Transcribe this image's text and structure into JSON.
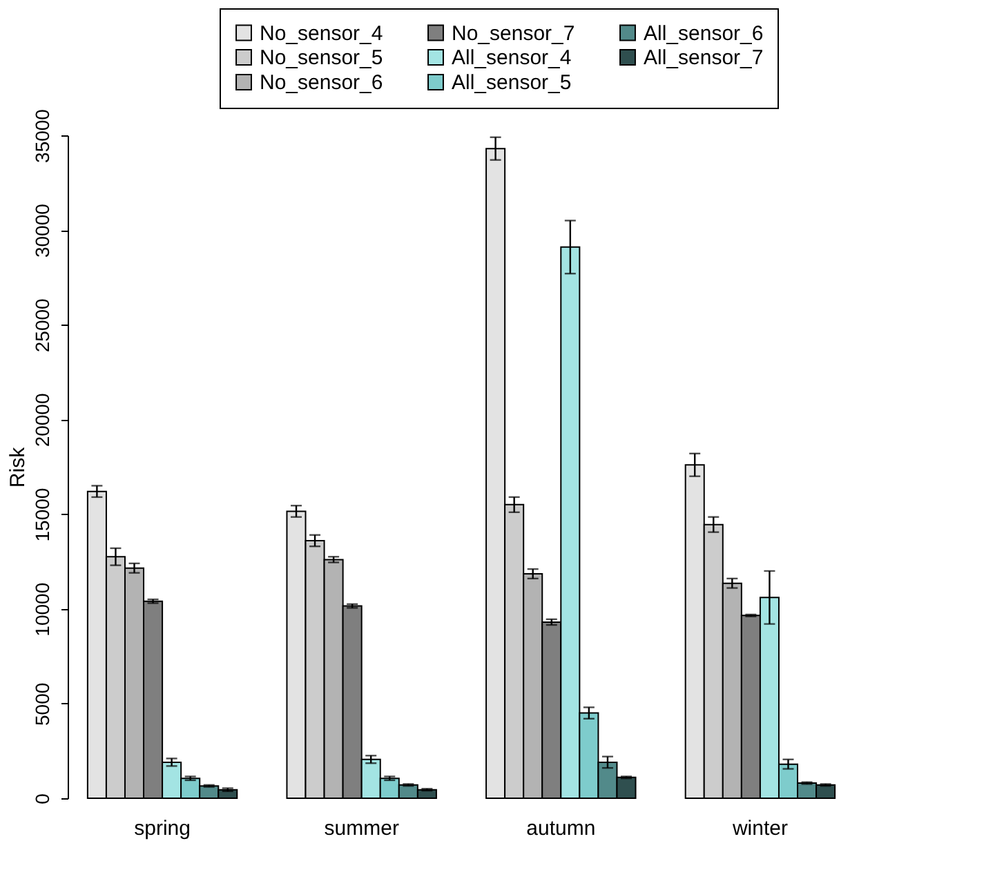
{
  "chart_data": {
    "type": "bar",
    "ylabel": "Risk",
    "categories": [
      "spring",
      "summer",
      "autumn",
      "winter"
    ],
    "ylim": [
      0,
      35000
    ],
    "yticks": [
      0,
      5000,
      10000,
      15000,
      20000,
      25000,
      30000,
      35000
    ],
    "grid": false,
    "legend": "top right",
    "series": [
      {
        "name": "No_sensor_4",
        "color": "#e3e3e3",
        "values": [
          16200,
          15150,
          34300,
          17600
        ],
        "errors": [
          300,
          300,
          600,
          600
        ]
      },
      {
        "name": "No_sensor_5",
        "color": "#cccccc",
        "values": [
          12750,
          13600,
          15500,
          14450
        ],
        "errors": [
          450,
          300,
          400,
          400
        ]
      },
      {
        "name": "No_sensor_6",
        "color": "#b3b3b3",
        "values": [
          12150,
          12600,
          11850,
          11350
        ],
        "errors": [
          250,
          150,
          250,
          250
        ]
      },
      {
        "name": "No_sensor_7",
        "color": "#7f7f7f",
        "values": [
          10400,
          10150,
          9300,
          9650
        ],
        "errors": [
          100,
          100,
          150,
          50
        ]
      },
      {
        "name": "All_sensor_4",
        "color": "#a3e4e3",
        "values": [
          1900,
          2050,
          29100,
          10600
        ],
        "errors": [
          200,
          200,
          1400,
          1400
        ]
      },
      {
        "name": "All_sensor_5",
        "color": "#7ecccc",
        "values": [
          1050,
          1050,
          4500,
          1800
        ],
        "errors": [
          100,
          100,
          300,
          250
        ]
      },
      {
        "name": "All_sensor_6",
        "color": "#528a8a",
        "values": [
          650,
          700,
          1900,
          800
        ],
        "errors": [
          50,
          50,
          300,
          50
        ]
      },
      {
        "name": "All_sensor_7",
        "color": "#2f4f4f",
        "values": [
          450,
          450,
          1100,
          700
        ],
        "errors": [
          80,
          50,
          50,
          50
        ]
      }
    ]
  }
}
